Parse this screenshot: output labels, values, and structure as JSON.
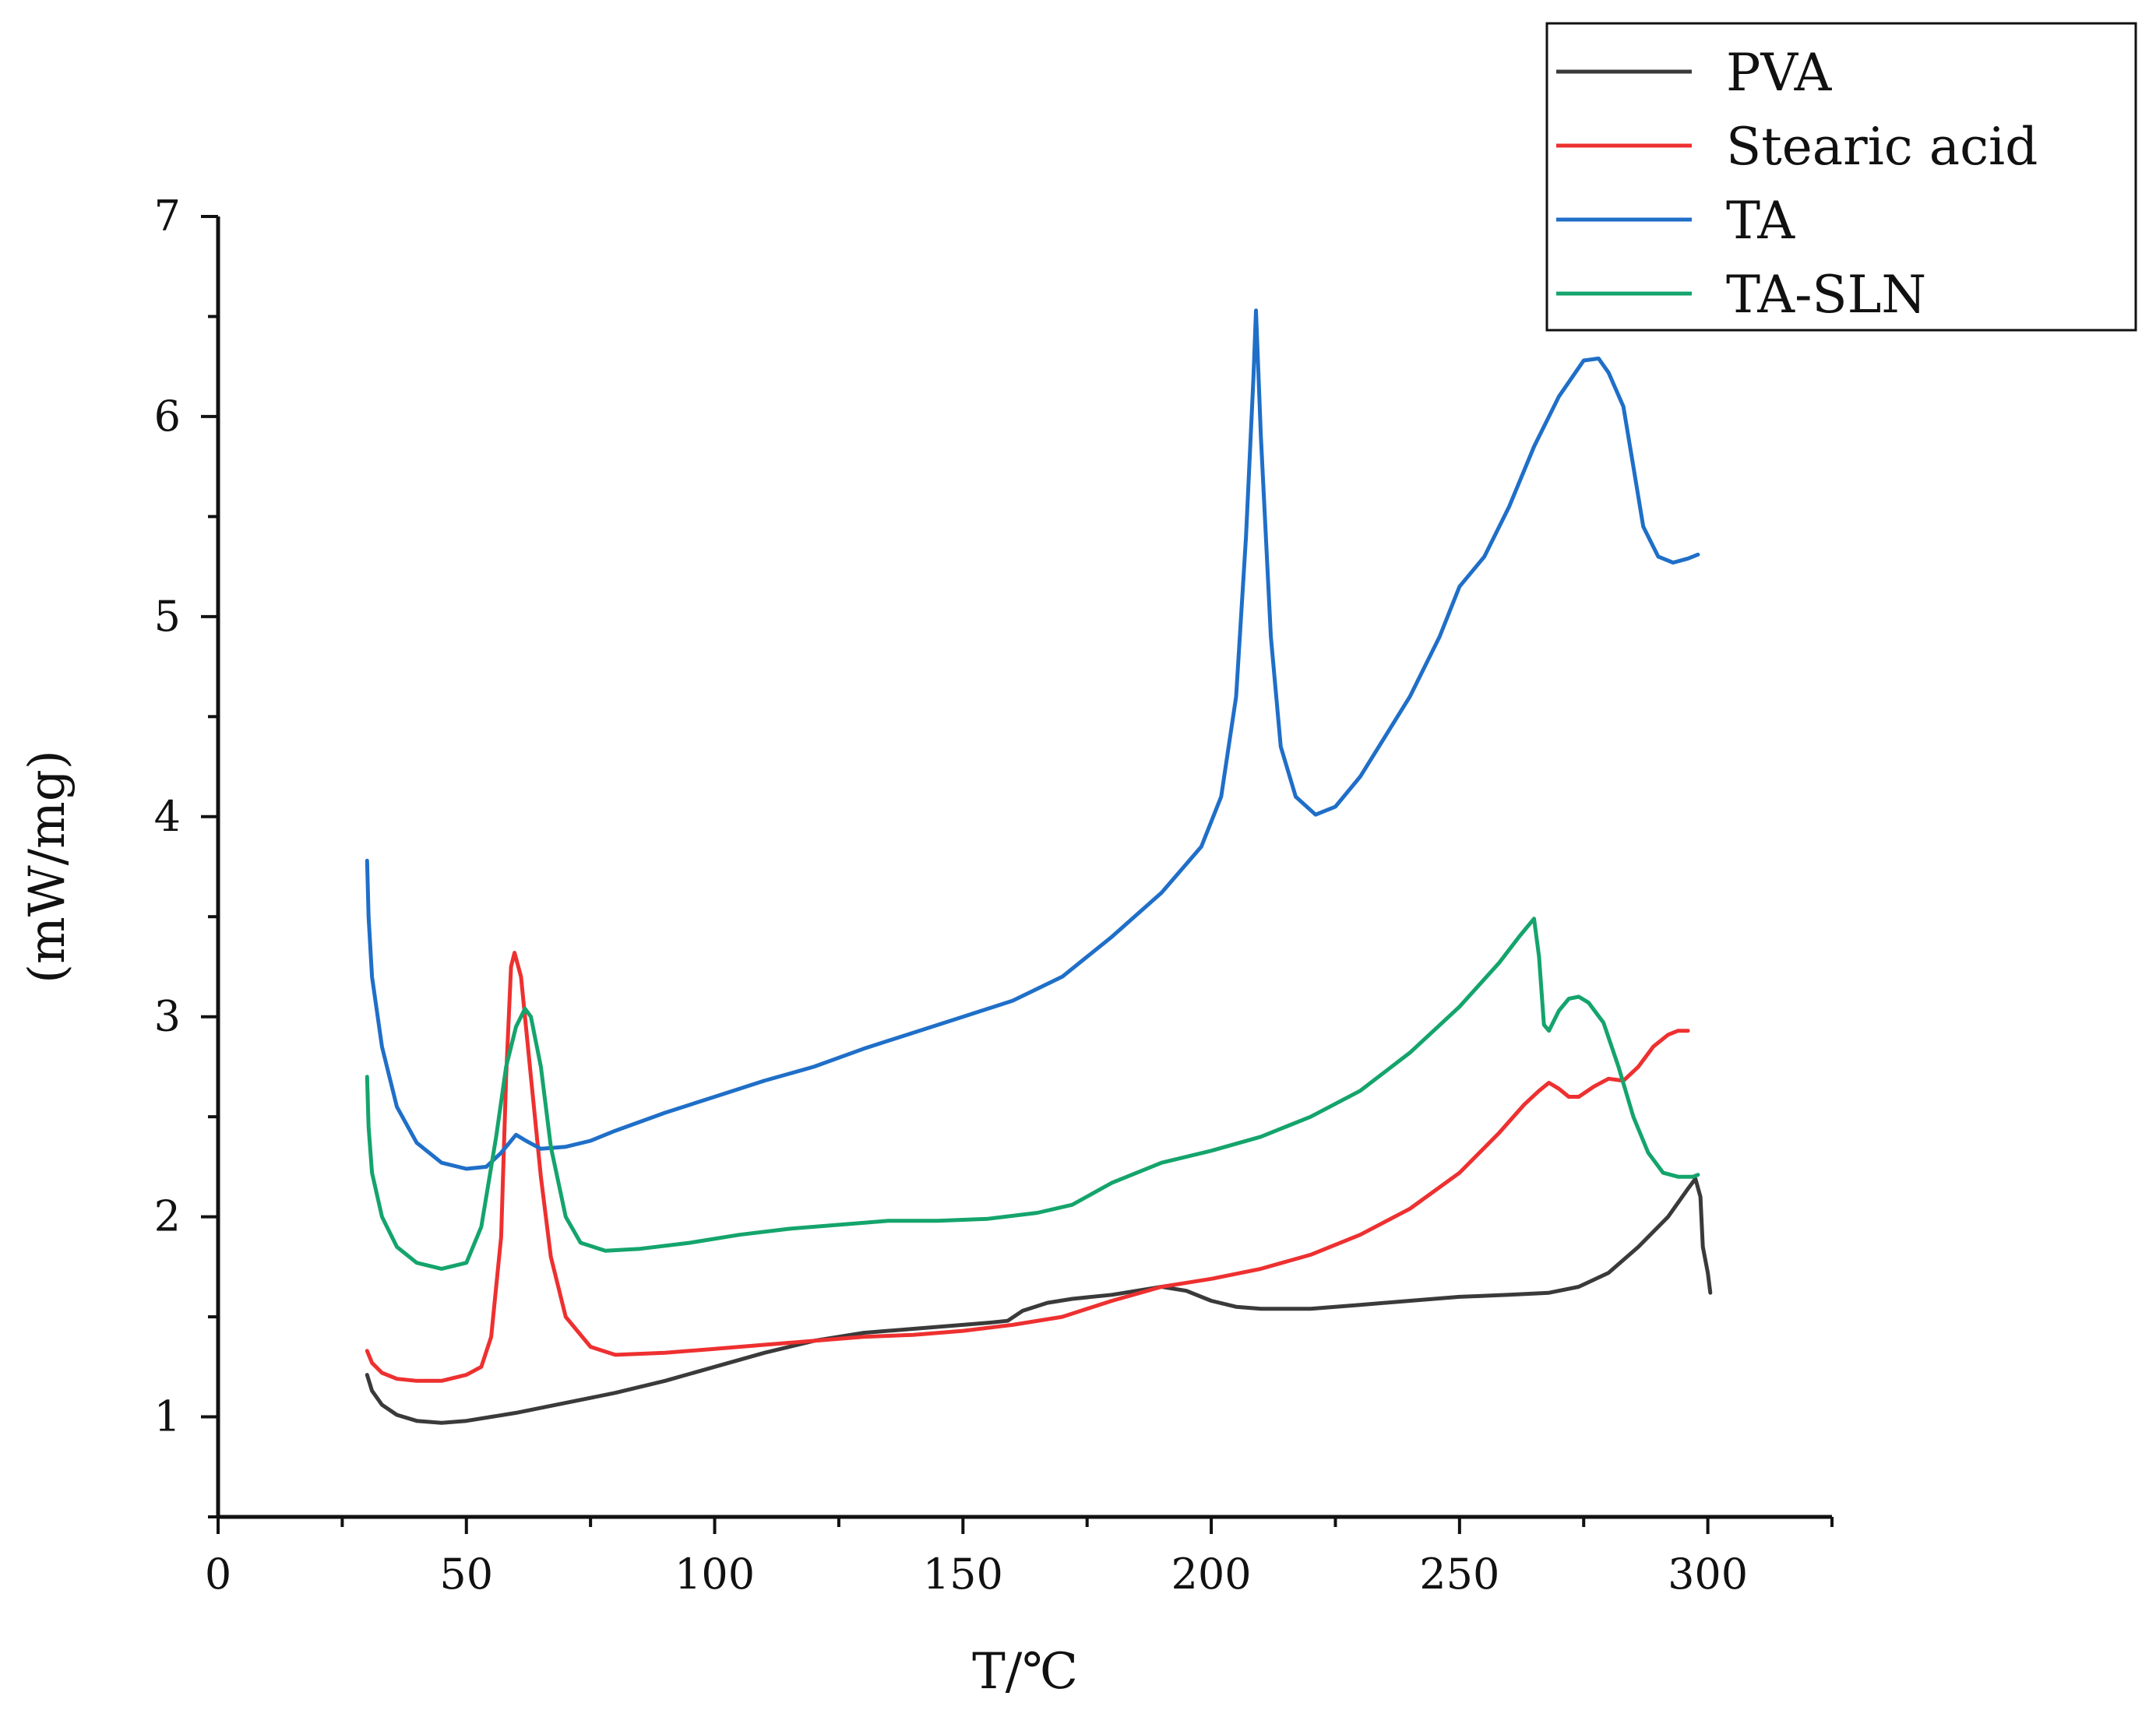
{
  "chart_data": {
    "type": "line",
    "title": "",
    "xlabel": "T/℃",
    "ylabel": "(mW/mg)",
    "xlim": [
      0,
      325
    ],
    "ylim": [
      0.5,
      7
    ],
    "xticks": [
      0,
      50,
      100,
      150,
      200,
      250,
      300
    ],
    "yticks": [
      1,
      2,
      3,
      4,
      5,
      6,
      7
    ],
    "grid": false,
    "legend_position": "top-right",
    "series": [
      {
        "name": "PVA",
        "color": "#3a3a3a",
        "points": [
          [
            30,
            1.21
          ],
          [
            31,
            1.13
          ],
          [
            33,
            1.06
          ],
          [
            36,
            1.01
          ],
          [
            40,
            0.98
          ],
          [
            45,
            0.97
          ],
          [
            50,
            0.98
          ],
          [
            60,
            1.02
          ],
          [
            70,
            1.07
          ],
          [
            80,
            1.12
          ],
          [
            90,
            1.18
          ],
          [
            100,
            1.25
          ],
          [
            110,
            1.32
          ],
          [
            120,
            1.38
          ],
          [
            130,
            1.42
          ],
          [
            140,
            1.44
          ],
          [
            150,
            1.46
          ],
          [
            155,
            1.47
          ],
          [
            159,
            1.48
          ],
          [
            162,
            1.53
          ],
          [
            167,
            1.57
          ],
          [
            172,
            1.59
          ],
          [
            180,
            1.61
          ],
          [
            190,
            1.65
          ],
          [
            195,
            1.63
          ],
          [
            200,
            1.58
          ],
          [
            205,
            1.55
          ],
          [
            210,
            1.54
          ],
          [
            220,
            1.54
          ],
          [
            230,
            1.56
          ],
          [
            240,
            1.58
          ],
          [
            250,
            1.6
          ],
          [
            260,
            1.61
          ],
          [
            268,
            1.62
          ],
          [
            274,
            1.65
          ],
          [
            280,
            1.72
          ],
          [
            286,
            1.85
          ],
          [
            292,
            2.0
          ],
          [
            296,
            2.14
          ],
          [
            297.5,
            2.19
          ],
          [
            298.5,
            2.1
          ],
          [
            299,
            1.85
          ],
          [
            300,
            1.72
          ],
          [
            300.5,
            1.62
          ]
        ]
      },
      {
        "name": "Stearic acid",
        "color": "#ee3030",
        "points": [
          [
            30,
            1.33
          ],
          [
            31,
            1.27
          ],
          [
            33,
            1.22
          ],
          [
            36,
            1.19
          ],
          [
            40,
            1.18
          ],
          [
            45,
            1.18
          ],
          [
            50,
            1.21
          ],
          [
            53,
            1.25
          ],
          [
            55,
            1.4
          ],
          [
            57,
            1.9
          ],
          [
            58,
            2.7
          ],
          [
            59,
            3.25
          ],
          [
            59.7,
            3.32
          ],
          [
            61,
            3.2
          ],
          [
            63,
            2.7
          ],
          [
            65,
            2.2
          ],
          [
            67,
            1.8
          ],
          [
            70,
            1.5
          ],
          [
            75,
            1.35
          ],
          [
            80,
            1.31
          ],
          [
            90,
            1.32
          ],
          [
            100,
            1.34
          ],
          [
            110,
            1.36
          ],
          [
            120,
            1.38
          ],
          [
            130,
            1.4
          ],
          [
            140,
            1.41
          ],
          [
            150,
            1.43
          ],
          [
            160,
            1.46
          ],
          [
            170,
            1.5
          ],
          [
            180,
            1.58
          ],
          [
            190,
            1.65
          ],
          [
            200,
            1.69
          ],
          [
            210,
            1.74
          ],
          [
            220,
            1.81
          ],
          [
            230,
            1.91
          ],
          [
            240,
            2.04
          ],
          [
            250,
            2.22
          ],
          [
            258,
            2.42
          ],
          [
            263,
            2.56
          ],
          [
            266,
            2.63
          ],
          [
            268,
            2.67
          ],
          [
            270,
            2.64
          ],
          [
            272,
            2.6
          ],
          [
            274,
            2.6
          ],
          [
            277,
            2.65
          ],
          [
            280,
            2.69
          ],
          [
            283,
            2.68
          ],
          [
            286,
            2.75
          ],
          [
            289,
            2.85
          ],
          [
            292,
            2.91
          ],
          [
            294,
            2.93
          ],
          [
            296,
            2.93
          ]
        ]
      },
      {
        "name": "TA",
        "color": "#1f6fc8",
        "points": [
          [
            30,
            3.78
          ],
          [
            30.3,
            3.5
          ],
          [
            31,
            3.2
          ],
          [
            33,
            2.85
          ],
          [
            36,
            2.55
          ],
          [
            40,
            2.37
          ],
          [
            45,
            2.27
          ],
          [
            50,
            2.24
          ],
          [
            54,
            2.25
          ],
          [
            57,
            2.32
          ],
          [
            59,
            2.38
          ],
          [
            60,
            2.41
          ],
          [
            62,
            2.38
          ],
          [
            65,
            2.34
          ],
          [
            70,
            2.35
          ],
          [
            75,
            2.38
          ],
          [
            80,
            2.43
          ],
          [
            90,
            2.52
          ],
          [
            100,
            2.6
          ],
          [
            110,
            2.68
          ],
          [
            120,
            2.75
          ],
          [
            130,
            2.84
          ],
          [
            140,
            2.92
          ],
          [
            150,
            3.0
          ],
          [
            160,
            3.08
          ],
          [
            170,
            3.2
          ],
          [
            180,
            3.4
          ],
          [
            190,
            3.62
          ],
          [
            198,
            3.85
          ],
          [
            202,
            4.1
          ],
          [
            205,
            4.6
          ],
          [
            207,
            5.4
          ],
          [
            208.5,
            6.2
          ],
          [
            209,
            6.53
          ],
          [
            210,
            5.9
          ],
          [
            212,
            4.9
          ],
          [
            214,
            4.35
          ],
          [
            217,
            4.1
          ],
          [
            221,
            4.01
          ],
          [
            225,
            4.05
          ],
          [
            230,
            4.2
          ],
          [
            240,
            4.6
          ],
          [
            246,
            4.9
          ],
          [
            250,
            5.15
          ],
          [
            255,
            5.3
          ],
          [
            260,
            5.55
          ],
          [
            265,
            5.85
          ],
          [
            270,
            6.1
          ],
          [
            275,
            6.28
          ],
          [
            278,
            6.29
          ],
          [
            280,
            6.22
          ],
          [
            283,
            6.05
          ],
          [
            285,
            5.75
          ],
          [
            287,
            5.45
          ],
          [
            290,
            5.3
          ],
          [
            293,
            5.27
          ],
          [
            296,
            5.29
          ],
          [
            298,
            5.31
          ]
        ]
      },
      {
        "name": "TA-SLN",
        "color": "#14a46c",
        "points": [
          [
            30,
            2.7
          ],
          [
            30.3,
            2.45
          ],
          [
            31,
            2.22
          ],
          [
            33,
            2.0
          ],
          [
            36,
            1.85
          ],
          [
            40,
            1.77
          ],
          [
            45,
            1.74
          ],
          [
            50,
            1.77
          ],
          [
            53,
            1.95
          ],
          [
            56,
            2.4
          ],
          [
            58,
            2.75
          ],
          [
            60,
            2.95
          ],
          [
            61.8,
            3.04
          ],
          [
            63,
            3.0
          ],
          [
            65,
            2.75
          ],
          [
            67,
            2.35
          ],
          [
            70,
            2.0
          ],
          [
            73,
            1.87
          ],
          [
            78,
            1.83
          ],
          [
            85,
            1.84
          ],
          [
            95,
            1.87
          ],
          [
            105,
            1.91
          ],
          [
            115,
            1.94
          ],
          [
            125,
            1.96
          ],
          [
            135,
            1.98
          ],
          [
            145,
            1.98
          ],
          [
            155,
            1.99
          ],
          [
            165,
            2.02
          ],
          [
            172,
            2.06
          ],
          [
            180,
            2.17
          ],
          [
            190,
            2.27
          ],
          [
            200,
            2.33
          ],
          [
            210,
            2.4
          ],
          [
            220,
            2.5
          ],
          [
            230,
            2.63
          ],
          [
            240,
            2.82
          ],
          [
            250,
            3.05
          ],
          [
            258,
            3.27
          ],
          [
            262,
            3.4
          ],
          [
            264,
            3.46
          ],
          [
            265,
            3.49
          ],
          [
            266,
            3.3
          ],
          [
            267,
            2.96
          ],
          [
            268,
            2.93
          ],
          [
            270,
            3.03
          ],
          [
            272,
            3.09
          ],
          [
            274,
            3.1
          ],
          [
            276,
            3.07
          ],
          [
            279,
            2.97
          ],
          [
            282,
            2.75
          ],
          [
            285,
            2.5
          ],
          [
            288,
            2.32
          ],
          [
            291,
            2.22
          ],
          [
            294,
            2.2
          ],
          [
            297,
            2.2
          ],
          [
            298,
            2.21
          ]
        ]
      }
    ]
  }
}
